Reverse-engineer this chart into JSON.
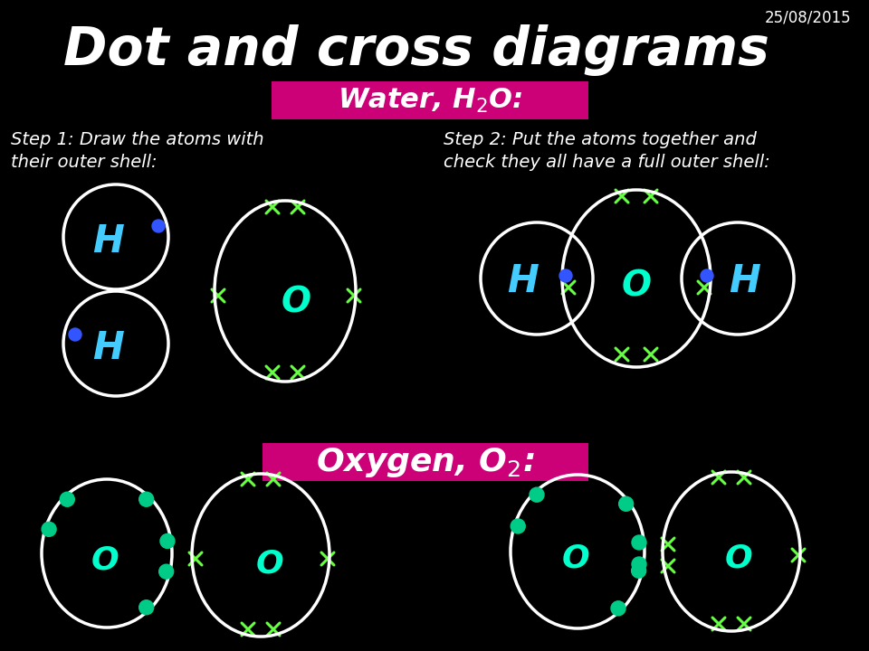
{
  "title": "Dot and cross diagrams",
  "date": "25/08/2015",
  "bg_color": "#000000",
  "title_color": "#ffffff",
  "label_bg": "#cc0077",
  "label_fg": "#ffffff",
  "step1_text": "Step 1: Draw the atoms with\ntheir outer shell:",
  "step2_text": "Step 2: Put the atoms together and\ncheck they all have a full outer shell:",
  "cross_color": "#66ff44",
  "dot_color_blue": "#3355ff",
  "dot_color_green": "#00cc88",
  "H_color": "#44ccff",
  "O_color": "#00ffcc",
  "circle_color": "#ffffff"
}
